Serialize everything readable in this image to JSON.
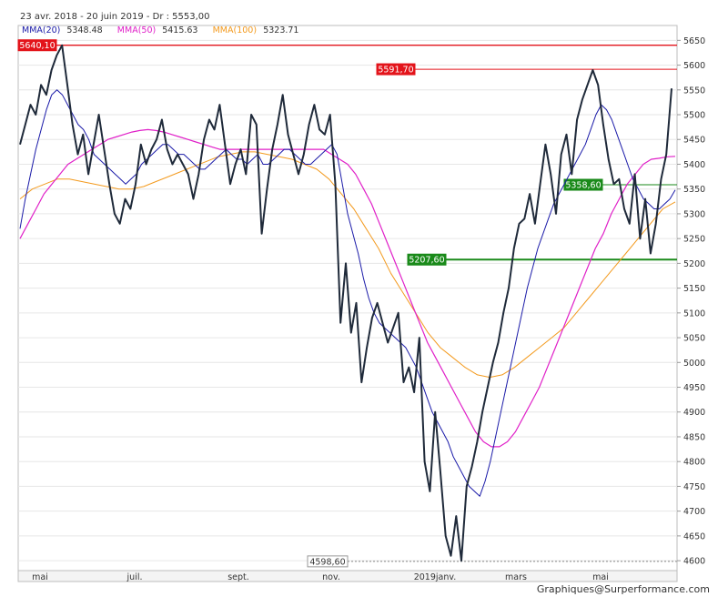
{
  "header": {
    "range": "23 avr. 2018 - 20 juin 2019 - Dr : 5553,00"
  },
  "credit": "Graphiques@Surperformance.com",
  "colors": {
    "price": "#1f2a3a",
    "ma20": "#1a1aa8",
    "ma50": "#e020c8",
    "ma100": "#f39a1e",
    "resistance": "#e3141b",
    "support": "#1a8a1a"
  },
  "legend": [
    {
      "label": "MMA(20)",
      "value": "5348.48",
      "color": "#1a1aa8"
    },
    {
      "label": "MMA(50)",
      "value": "5415.63",
      "color": "#e020c8"
    },
    {
      "label": "MMA(100)",
      "value": "5323.71",
      "color": "#f39a1e"
    }
  ],
  "chart_data": {
    "type": "line",
    "ylim": [
      4580,
      5680
    ],
    "y_ticks": [
      "4600",
      "4650",
      "4700",
      "4750",
      "4800",
      "4850",
      "4900",
      "4950",
      "5000",
      "5050",
      "5100",
      "5150",
      "5200",
      "5250",
      "5300",
      "5350",
      "5400",
      "5450",
      "5500",
      "5550",
      "5600",
      "5650"
    ],
    "x_ticks": [
      "mai",
      "juil.",
      "sept.",
      "nov.",
      "2019janv.",
      "mars",
      "mai"
    ],
    "grid": true,
    "levels": [
      {
        "label": "5640,10",
        "value": 5640.1,
        "kind": "resistance"
      },
      {
        "label": "5591,70",
        "value": 5591.7,
        "kind": "resistance"
      },
      {
        "label": "5358,60",
        "value": 5358.6,
        "kind": "support"
      },
      {
        "label": "5207,60",
        "value": 5207.6,
        "kind": "support"
      },
      {
        "label": "4598,60",
        "value": 4598.6,
        "kind": "low"
      }
    ],
    "series": [
      {
        "key": "price",
        "values": [
          5440,
          5480,
          5520,
          5500,
          5560,
          5540,
          5590,
          5620,
          5640,
          5560,
          5480,
          5420,
          5460,
          5380,
          5440,
          5500,
          5430,
          5360,
          5300,
          5280,
          5330,
          5310,
          5360,
          5440,
          5400,
          5430,
          5450,
          5490,
          5430,
          5400,
          5420,
          5400,
          5380,
          5330,
          5380,
          5450,
          5490,
          5470,
          5520,
          5440,
          5360,
          5400,
          5430,
          5380,
          5500,
          5480,
          5260,
          5350,
          5430,
          5480,
          5540,
          5460,
          5420,
          5380,
          5420,
          5480,
          5520,
          5470,
          5460,
          5500,
          5360,
          5080,
          5200,
          5060,
          5120,
          4960,
          5030,
          5090,
          5120,
          5080,
          5040,
          5070,
          5100,
          4960,
          4990,
          4940,
          5050,
          4800,
          4740,
          4900,
          4780,
          4650,
          4610,
          4690,
          4600,
          4750,
          4790,
          4840,
          4900,
          4950,
          5000,
          5040,
          5100,
          5150,
          5230,
          5280,
          5290,
          5340,
          5280,
          5360,
          5440,
          5380,
          5300,
          5420,
          5460,
          5380,
          5490,
          5530,
          5560,
          5590,
          5560,
          5480,
          5410,
          5360,
          5370,
          5310,
          5280,
          5380,
          5250,
          5330,
          5220,
          5280,
          5370,
          5420,
          5553
        ]
      },
      {
        "key": "ma20",
        "values": [
          5270,
          5330,
          5380,
          5430,
          5470,
          5510,
          5540,
          5550,
          5540,
          5520,
          5500,
          5480,
          5470,
          5450,
          5420,
          5410,
          5400,
          5390,
          5380,
          5370,
          5360,
          5370,
          5380,
          5400,
          5410,
          5420,
          5430,
          5440,
          5440,
          5430,
          5420,
          5420,
          5410,
          5400,
          5390,
          5390,
          5400,
          5410,
          5420,
          5430,
          5420,
          5410,
          5410,
          5400,
          5410,
          5420,
          5400,
          5400,
          5410,
          5420,
          5430,
          5430,
          5420,
          5410,
          5400,
          5400,
          5410,
          5420,
          5430,
          5440,
          5420,
          5360,
          5300,
          5260,
          5220,
          5170,
          5130,
          5100,
          5080,
          5070,
          5060,
          5050,
          5040,
          5030,
          5010,
          4990,
          4960,
          4930,
          4900,
          4880,
          4860,
          4840,
          4810,
          4790,
          4770,
          4750,
          4740,
          4730,
          4760,
          4800,
          4850,
          4900,
          4950,
          5000,
          5050,
          5100,
          5150,
          5190,
          5230,
          5260,
          5290,
          5320,
          5340,
          5360,
          5380,
          5400,
          5420,
          5440,
          5470,
          5500,
          5520,
          5510,
          5490,
          5460,
          5430,
          5400,
          5370,
          5350,
          5330,
          5320,
          5310,
          5310,
          5320,
          5330,
          5348
        ]
      },
      {
        "key": "ma50",
        "values": [
          5250,
          5280,
          5310,
          5340,
          5360,
          5380,
          5400,
          5410,
          5420,
          5430,
          5440,
          5450,
          5455,
          5460,
          5465,
          5468,
          5470,
          5468,
          5465,
          5460,
          5455,
          5450,
          5445,
          5440,
          5435,
          5430,
          5430,
          5430,
          5430,
          5430,
          5430,
          5430,
          5430,
          5430,
          5430,
          5430,
          5430,
          5430,
          5430,
          5420,
          5410,
          5400,
          5380,
          5350,
          5320,
          5280,
          5240,
          5200,
          5160,
          5120,
          5080,
          5040,
          5010,
          4980,
          4950,
          4920,
          4890,
          4860,
          4840,
          4830,
          4830,
          4840,
          4860,
          4890,
          4920,
          4950,
          4990,
          5030,
          5070,
          5110,
          5150,
          5190,
          5230,
          5260,
          5300,
          5330,
          5360,
          5380,
          5400,
          5410,
          5412,
          5415,
          5416
        ]
      },
      {
        "key": "ma100",
        "values": [
          5330,
          5350,
          5360,
          5370,
          5370,
          5365,
          5360,
          5355,
          5350,
          5350,
          5355,
          5365,
          5375,
          5385,
          5395,
          5405,
          5415,
          5420,
          5425,
          5425,
          5420,
          5415,
          5410,
          5400,
          5390,
          5370,
          5340,
          5310,
          5270,
          5230,
          5180,
          5140,
          5100,
          5060,
          5030,
          5010,
          4990,
          4975,
          4970,
          4975,
          4990,
          5010,
          5030,
          5050,
          5070,
          5100,
          5130,
          5160,
          5190,
          5220,
          5250,
          5280,
          5310,
          5324
        ]
      }
    ]
  }
}
